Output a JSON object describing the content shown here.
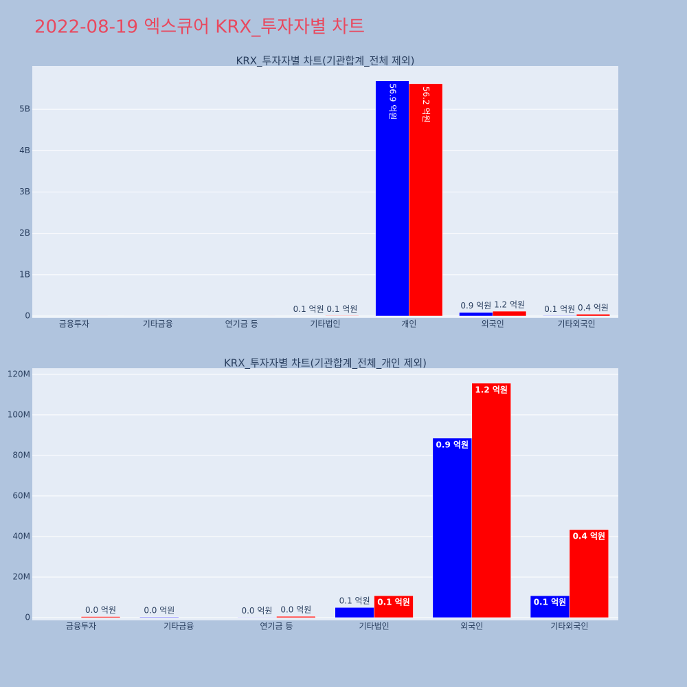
{
  "title": "2022-08-19 엑스큐어 KRX_투자자별 차트",
  "chart_data": [
    {
      "type": "bar",
      "title": "KRX_투자자별 차트(기관합계_전체 제외)",
      "categories": [
        "금융투자",
        "기타금융",
        "연기금 등",
        "기타법인",
        "개인",
        "외국인",
        "기타외국인"
      ],
      "series": [
        {
          "color": "#0000ff",
          "values": [
            0,
            300000,
            200000,
            5000000,
            5690000000,
            88500000,
            10800000
          ],
          "value_labels": [
            null,
            null,
            null,
            "0.1 억원",
            "56.9 억원",
            "0.9 억원",
            "0.1 억원"
          ]
        },
        {
          "color": "#ff0000",
          "values": [
            500000,
            0,
            600000,
            10800000,
            5620000000,
            115600000,
            43400000
          ],
          "value_labels": [
            null,
            null,
            null,
            "0.1 억원",
            "56.2 억원",
            "1.2 억원",
            "0.4 억원"
          ]
        }
      ],
      "ylim": [
        -50000000,
        6050000000
      ],
      "yticks": [
        0,
        {
          "value": 1000000000,
          "label": "1B"
        },
        {
          "value": 2000000000,
          "label": "2B"
        },
        {
          "value": 3000000000,
          "label": "3B"
        },
        {
          "value": 4000000000,
          "label": "4B"
        },
        {
          "value": 5000000000,
          "label": "5B"
        }
      ],
      "grid": true
    },
    {
      "type": "bar",
      "title": "KRX_투자자별 차트(기관합계_전체_개인 제외)",
      "categories": [
        "금융투자",
        "기타금융",
        "연기금 등",
        "기타법인",
        "외국인",
        "기타외국인"
      ],
      "series": [
        {
          "color": "#0000ff",
          "values": [
            0,
            300000,
            200000,
            5000000,
            88500000,
            10800000
          ],
          "value_labels": [
            null,
            "0.0 억원",
            "0.0 억원",
            "0.1 억원",
            "0.9 억원",
            "0.1 억원"
          ]
        },
        {
          "color": "#ff0000",
          "values": [
            500000,
            0,
            600000,
            10800000,
            115600000,
            43400000
          ],
          "value_labels": [
            "0.0 억원",
            null,
            "0.0 억원",
            "0.1 억원",
            "1.2 억원",
            "0.4 억원"
          ]
        }
      ],
      "ylim": [
        -1360000,
        123000000
      ],
      "yticks": [
        0,
        {
          "value": 20000000,
          "label": "20M"
        },
        {
          "value": 40000000,
          "label": "40M"
        },
        {
          "value": 60000000,
          "label": "60M"
        },
        {
          "value": 80000000,
          "label": "80M"
        },
        {
          "value": 100000000,
          "label": "100M"
        },
        {
          "value": 120000000,
          "label": "120M"
        }
      ],
      "grid": true
    }
  ]
}
